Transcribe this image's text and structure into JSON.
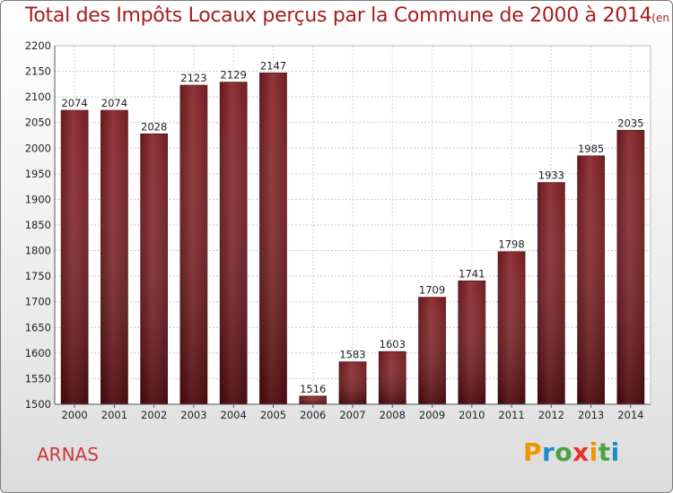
{
  "chart_data": {
    "type": "bar",
    "title": "Total des Impôts Locaux perçus par la Commune de 2000 à 2014",
    "unit": "(en milliers d'€)",
    "categories": [
      "2000",
      "2001",
      "2002",
      "2003",
      "2004",
      "2005",
      "2006",
      "2007",
      "2008",
      "2009",
      "2010",
      "2011",
      "2012",
      "2013",
      "2014"
    ],
    "values": [
      2074,
      2074,
      2028,
      2123,
      2129,
      2147,
      1516,
      1583,
      1603,
      1709,
      1741,
      1798,
      1933,
      1985,
      2035
    ],
    "ylim": [
      1500,
      2200
    ],
    "yticks": [
      1500,
      1550,
      1600,
      1650,
      1700,
      1750,
      1800,
      1850,
      1900,
      1950,
      2000,
      2050,
      2100,
      2150,
      2200
    ],
    "grid": true,
    "bar_color": "#7a1a1e"
  },
  "commune": "ARNAS",
  "logo": {
    "letters": [
      "P",
      "r",
      "o",
      "x",
      "i",
      "t",
      "i"
    ],
    "colors": [
      "#f29400",
      "#1e8ccb",
      "#4aa33d",
      "#e8312e",
      "#f29400",
      "#4aa33d",
      "#1e8ccb"
    ]
  }
}
